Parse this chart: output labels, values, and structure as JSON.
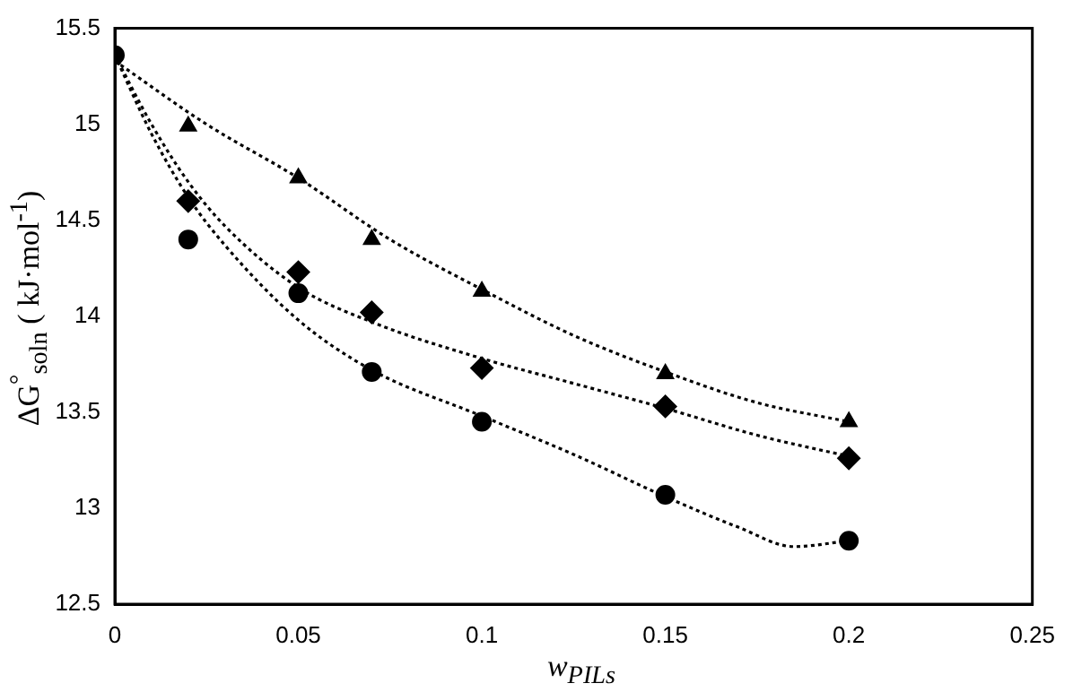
{
  "chart_data": {
    "type": "scatter",
    "xlabel": "w$_{PILs}$",
    "ylabel": "ΔG$^{°}$$_{soln}$ ( kJ·mol$^{-1}$)",
    "xlim": [
      0,
      0.25
    ],
    "xticks": [
      0,
      0.05,
      0.1,
      0.15,
      0.2,
      0.25
    ],
    "ylim": [
      12.5,
      15.5
    ],
    "yticks": [
      12.5,
      13,
      13.5,
      14,
      14.5,
      15,
      15.5
    ],
    "grid": false,
    "legend": false,
    "series": [
      {
        "marker": "triangle",
        "color": "#000000",
        "x": [
          0.02,
          0.05,
          0.07,
          0.1,
          0.15,
          0.2
        ],
        "values": [
          14.99,
          14.72,
          14.4,
          14.13,
          13.7,
          13.45
        ]
      },
      {
        "marker": "diamond",
        "color": "#000000",
        "x": [
          0.02,
          0.05,
          0.07,
          0.1,
          0.15,
          0.2
        ],
        "values": [
          14.6,
          14.23,
          14.02,
          13.73,
          13.53,
          13.26
        ]
      },
      {
        "marker": "circle",
        "color": "#000000",
        "x": [
          0,
          0.02,
          0.05,
          0.07,
          0.1,
          0.15,
          0.2
        ],
        "values": [
          15.36,
          14.4,
          14.12,
          13.71,
          13.45,
          13.07,
          12.83
        ]
      },
      {
        "type": "line",
        "marker": "none",
        "line_style": "dotted",
        "color": "#000000",
        "x": [
          0,
          0.025,
          0.05,
          0.075,
          0.1,
          0.125,
          0.15,
          0.175,
          0.2
        ],
        "values": [
          15.33,
          15.0,
          14.72,
          14.4,
          14.14,
          13.9,
          13.71,
          13.55,
          13.45
        ]
      },
      {
        "type": "line",
        "marker": "none",
        "line_style": "dotted",
        "color": "#000000",
        "x": [
          0,
          0.01,
          0.02,
          0.03,
          0.05,
          0.07,
          0.1,
          0.125,
          0.15,
          0.175,
          0.2
        ],
        "values": [
          15.36,
          15.0,
          14.7,
          14.47,
          14.15,
          13.97,
          13.78,
          13.65,
          13.52,
          13.38,
          13.27
        ]
      },
      {
        "type": "line",
        "marker": "none",
        "line_style": "dotted",
        "color": "#000000",
        "x": [
          0,
          0.01,
          0.02,
          0.03,
          0.05,
          0.07,
          0.1,
          0.125,
          0.15,
          0.17,
          0.185,
          0.2
        ],
        "values": [
          15.36,
          14.95,
          14.62,
          14.37,
          13.98,
          13.72,
          13.48,
          13.28,
          13.06,
          12.9,
          12.8,
          12.83
        ]
      }
    ]
  }
}
